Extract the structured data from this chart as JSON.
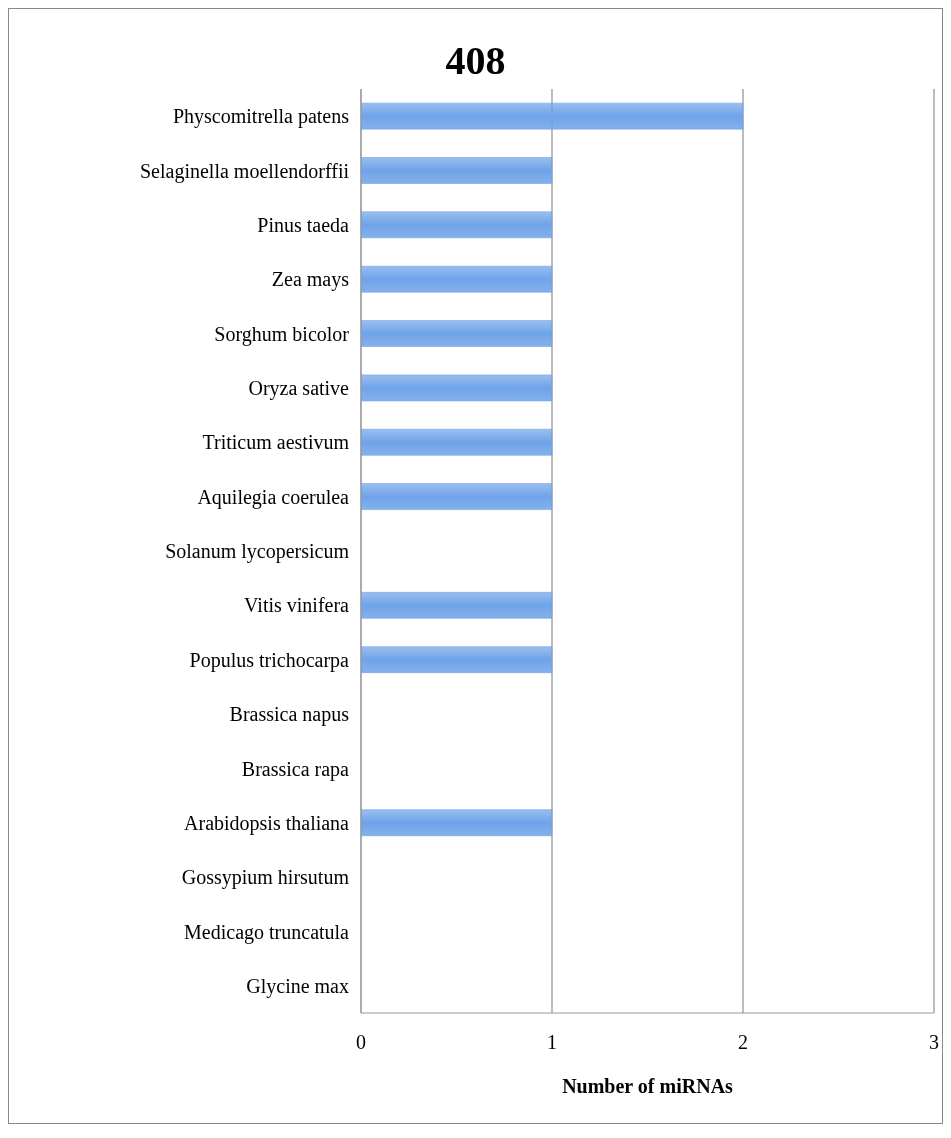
{
  "chart_data": {
    "type": "bar",
    "title": "408",
    "xlabel": "Number of miRNAs",
    "orientation": "horizontal",
    "categories": [
      "Physcomitrella patens",
      "Selaginella moellendorffii",
      "Pinus taeda",
      "Zea mays",
      "Sorghum bicolor",
      "Oryza sative",
      "Triticum aestivum",
      "Aquilegia coerulea",
      "Solanum lycopersicum",
      "Vitis vinifera",
      "Populus trichocarpa",
      "Brassica napus",
      "Brassica rapa",
      "Arabidopsis thaliana",
      "Gossypium hirsutum",
      "Medicago truncatula",
      "Glycine max"
    ],
    "values": [
      2,
      1,
      1,
      1,
      1,
      1,
      1,
      1,
      0,
      1,
      1,
      0,
      0,
      1,
      0,
      0,
      0
    ],
    "color": "#6fa3e8",
    "xlim": [
      0,
      3
    ],
    "xticks": [
      0,
      1,
      2,
      3
    ],
    "grid": "x",
    "legend": false
  }
}
